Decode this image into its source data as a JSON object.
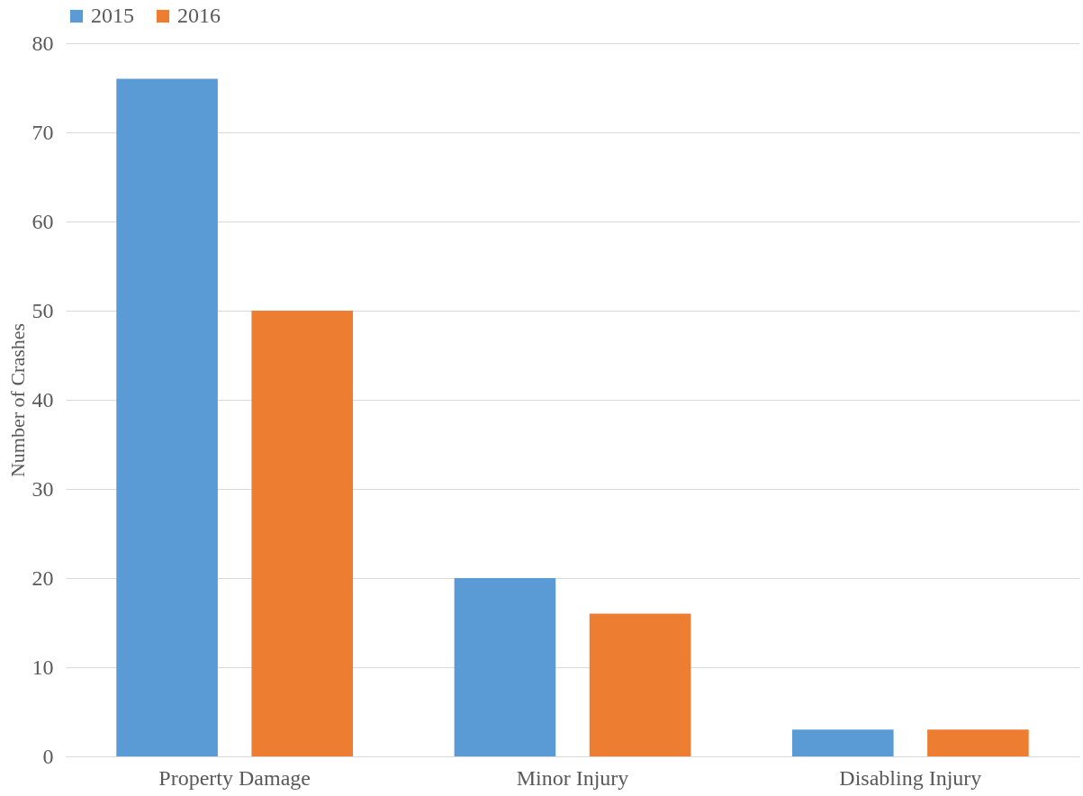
{
  "chart_data": {
    "type": "bar",
    "ylabel": "Number of Crashes",
    "categories": [
      "Property Damage",
      "Minor Injury",
      "Disabling Injury"
    ],
    "series": [
      {
        "name": "2015",
        "color": "#5b9bd5",
        "values": [
          76,
          20,
          3
        ]
      },
      {
        "name": "2016",
        "color": "#ed7d31",
        "values": [
          50,
          16,
          3
        ]
      }
    ],
    "ylim": [
      0,
      80
    ],
    "yticks": [
      0,
      10,
      20,
      30,
      40,
      50,
      60,
      70,
      80
    ],
    "grid": "y",
    "legend": "top"
  }
}
